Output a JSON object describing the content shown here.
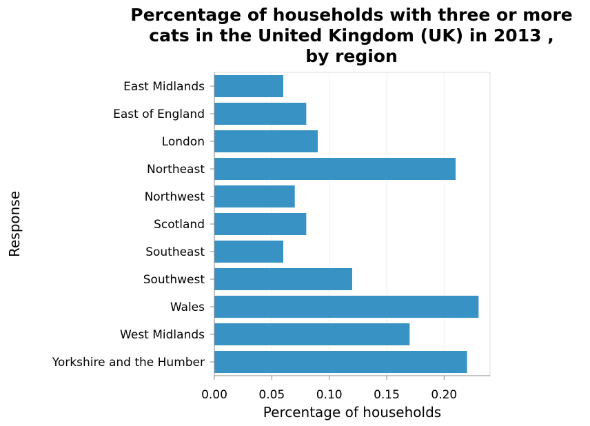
{
  "chart_data": {
    "type": "bar",
    "orientation": "horizontal",
    "title": [
      "Percentage of households with three or more",
      "cats in the United Kingdom (UK) in 2013 ,",
      "by region"
    ],
    "xlabel": "Percentage of households",
    "ylabel": "Response",
    "xlim": [
      0,
      0.24
    ],
    "xticks": [
      "0.00",
      "0.05",
      "0.10",
      "0.15",
      "0.20"
    ],
    "grid": true,
    "bar_color": "#3892c3",
    "categories": [
      "East Midlands",
      "East of England",
      "London",
      "Northeast",
      "Northwest",
      "Scotland",
      "Southeast",
      "Southwest",
      "Wales",
      "West Midlands",
      "Yorkshire and the Humber"
    ],
    "values": [
      0.06,
      0.08,
      0.09,
      0.21,
      0.07,
      0.08,
      0.06,
      0.12,
      0.23,
      0.17,
      0.22
    ]
  }
}
